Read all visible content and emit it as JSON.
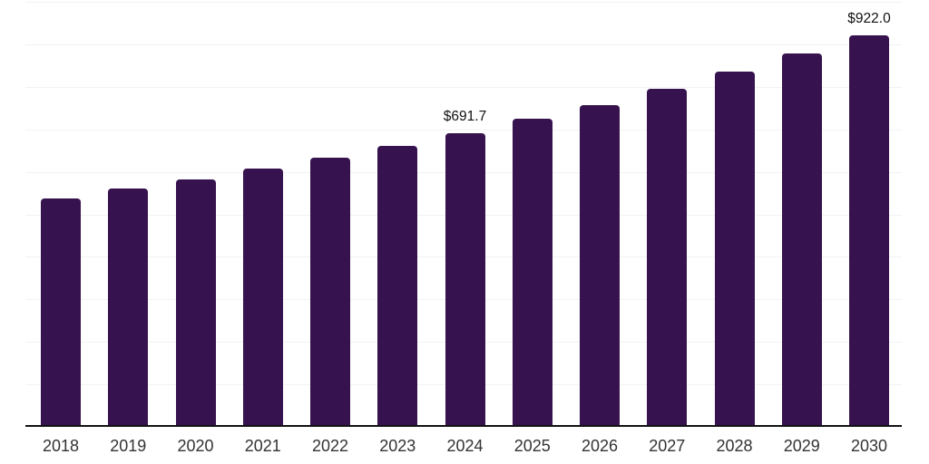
{
  "chart_data": {
    "type": "bar",
    "title": "",
    "xlabel": "",
    "ylabel": "",
    "categories": [
      "2018",
      "2019",
      "2020",
      "2021",
      "2022",
      "2023",
      "2024",
      "2025",
      "2026",
      "2027",
      "2028",
      "2029",
      "2030"
    ],
    "values": [
      538,
      560,
      582,
      607.5,
      633.5,
      660.5,
      691.7,
      725,
      757.5,
      795,
      835,
      878,
      922
    ],
    "data_labels": [
      "",
      "",
      "",
      "",
      "",
      "",
      "$691.7",
      "",
      "",
      "",
      "",
      "",
      "$922.0"
    ],
    "ylim": [
      0,
      1000
    ],
    "grid_step": 100,
    "grid": true,
    "legend": false,
    "y_tick_labels_visible": false,
    "bar_color": "#36124E",
    "gridline_color": "#F2F2F2",
    "axis_line_color": "#111111",
    "tick_label_color": "#333333",
    "value_label_color": "#111111",
    "background_color": "#FFFFFF"
  }
}
